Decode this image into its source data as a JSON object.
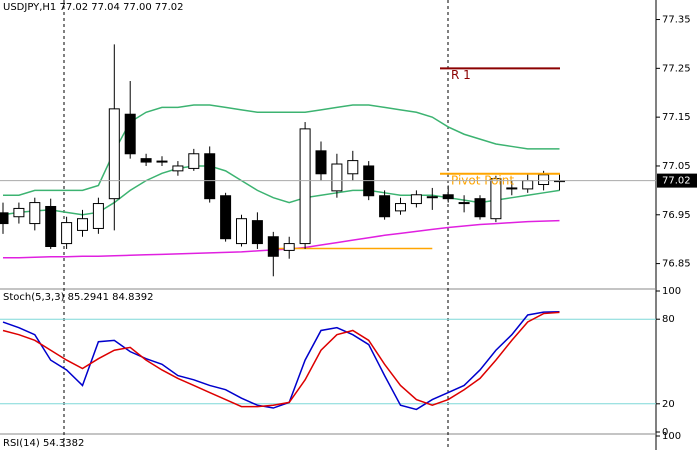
{
  "chart_data": [
    {
      "type": "candlestick",
      "title": "USDJPY,H1  77.02 77.04 77.00 77.02",
      "ylim": [
        76.8,
        77.39
      ],
      "yticks": [
        77.35,
        77.25,
        77.15,
        77.05,
        76.95,
        76.85
      ],
      "open": [
        76.954,
        76.946,
        76.932,
        76.967,
        76.891,
        76.918,
        76.922,
        76.983,
        77.156,
        77.065,
        77.058,
        77.04,
        77.045,
        77.075,
        76.989,
        76.891,
        76.938,
        76.905,
        76.877,
        76.891,
        77.081,
        76.999,
        77.034,
        77.05,
        76.989,
        76.958,
        76.973,
        76.985,
        76.991,
        76.975,
        76.983,
        76.942,
        77.003,
        77.003,
        77.012,
        77.02
      ],
      "high": [
        76.975,
        76.975,
        76.985,
        76.983,
        76.946,
        76.96,
        76.985,
        77.299,
        77.224,
        77.075,
        77.07,
        77.06,
        77.085,
        77.09,
        76.995,
        76.95,
        76.955,
        76.915,
        76.905,
        77.14,
        77.1,
        77.075,
        77.081,
        77.06,
        77.0,
        76.985,
        77.0,
        77.005,
        77.01,
        76.99,
        76.99,
        77.03,
        77.02,
        77.035,
        77.04,
        77.035
      ],
      "low": [
        76.911,
        76.932,
        76.918,
        76.88,
        76.88,
        76.905,
        76.911,
        76.918,
        77.065,
        77.05,
        77.05,
        77.03,
        77.04,
        76.975,
        76.895,
        76.885,
        76.88,
        76.824,
        76.86,
        76.88,
        77.02,
        76.985,
        77.02,
        76.98,
        76.94,
        76.95,
        76.965,
        76.96,
        76.975,
        76.955,
        76.94,
        76.935,
        76.99,
        76.995,
        77.0,
        77.0
      ],
      "close": [
        76.932,
        76.963,
        76.975,
        76.885,
        76.934,
        76.942,
        76.973,
        77.167,
        77.075,
        77.058,
        77.06,
        77.05,
        77.075,
        76.983,
        76.901,
        76.942,
        76.891,
        76.865,
        76.891,
        77.126,
        77.034,
        77.054,
        77.061,
        76.989,
        76.946,
        76.973,
        76.991,
        76.987,
        76.983,
        76.973,
        76.946,
        77.024,
        77.005,
        77.02,
        77.032,
        77.02
      ],
      "up_color": "#ffffff",
      "down_color": "#000000",
      "series": [
        {
          "color": "#3cb371",
          "values": [
            76.99,
            76.99,
            77.0,
            77.0,
            77.0,
            77.0,
            77.01,
            77.08,
            77.14,
            77.16,
            77.17,
            77.17,
            77.175,
            77.175,
            77.17,
            77.165,
            77.16,
            77.16,
            77.16,
            77.16,
            77.165,
            77.17,
            77.175,
            77.175,
            77.17,
            77.165,
            77.16,
            77.15,
            77.13,
            77.115,
            77.105,
            77.095,
            77.09,
            77.085,
            77.085,
            77.085
          ]
        },
        {
          "color": "#3cb371",
          "values": [
            76.95,
            76.955,
            76.958,
            76.96,
            76.955,
            76.95,
            76.955,
            76.975,
            77.0,
            77.02,
            77.035,
            77.045,
            77.05,
            77.05,
            77.04,
            77.02,
            77.0,
            76.985,
            76.975,
            76.985,
            76.99,
            76.995,
            77.0,
            77.0,
            76.995,
            76.99,
            76.99,
            76.99,
            76.985,
            76.98,
            76.975,
            76.98,
            76.985,
            76.99,
            76.995,
            77.0
          ]
        },
        {
          "color": "#e020e0",
          "values": [
            76.862,
            76.862,
            76.863,
            76.864,
            76.864,
            76.865,
            76.865,
            76.866,
            76.867,
            76.868,
            76.869,
            76.87,
            76.871,
            76.872,
            76.873,
            76.874,
            76.876,
            76.878,
            76.88,
            76.883,
            76.888,
            76.893,
            76.898,
            76.903,
            76.908,
            76.912,
            76.916,
            76.92,
            76.924,
            76.927,
            76.93,
            76.932,
            76.934,
            76.936,
            76.937,
            76.938
          ]
        },
        {
          "color": "#ffa500",
          "values": [
            null,
            null,
            null,
            null,
            null,
            null,
            null,
            null,
            null,
            null,
            null,
            null,
            null,
            null,
            null,
            null,
            null,
            76.881,
            76.881,
            76.881,
            76.881,
            76.881,
            76.881,
            76.881,
            76.881,
            76.881,
            76.881,
            76.881,
            null,
            null,
            null,
            null,
            null,
            null,
            null,
            null
          ]
        }
      ],
      "levels": [
        {
          "label": "R 1",
          "value": 77.25,
          "color": "#8b0000"
        },
        {
          "label": "Pivot Point",
          "value": 77.034,
          "color": "#ffa500"
        }
      ],
      "last_price": 77.02
    },
    {
      "type": "line",
      "title": "Stoch(5,3,3) 85.2941 84.8392",
      "ylim": [
        0,
        100
      ],
      "yticks": [
        100,
        80,
        20,
        0
      ],
      "levels": [
        80,
        20
      ],
      "series": [
        {
          "color": "#0000cc",
          "values": [
            78,
            74,
            69,
            51,
            44,
            33,
            64,
            65,
            57,
            52,
            48,
            40,
            37,
            33,
            30,
            24,
            19,
            17,
            21,
            51,
            72,
            74,
            69,
            62,
            40,
            19,
            16,
            23,
            28,
            33,
            44,
            58,
            69,
            83,
            85,
            85.29
          ]
        },
        {
          "color": "#dd0000",
          "values": [
            72,
            69,
            65,
            58,
            51,
            45,
            52,
            58,
            60,
            51,
            44,
            38,
            33,
            28,
            23,
            18,
            18,
            19,
            21,
            37,
            58,
            69,
            72,
            65,
            48,
            33,
            23,
            19,
            23,
            30,
            38,
            51,
            65,
            78,
            84,
            84.84
          ]
        }
      ]
    },
    {
      "type": "line",
      "title": "RSI(14) 54.3382",
      "ylim": [
        0,
        100
      ],
      "yticks": [
        100
      ],
      "series": []
    }
  ]
}
